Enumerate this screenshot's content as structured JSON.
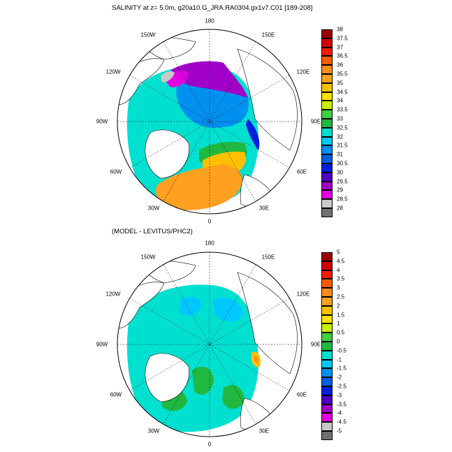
{
  "panels": {
    "top": {
      "title": "SALINITY at z=   5.0m, g20a10.G_JRA.RA0304.gx1v7.C01 [189-208]",
      "lon_labels": {
        "lon_180": "180",
        "lon_150w": "150W",
        "lon_150e": "150E",
        "lon_120w": "120W",
        "lon_120e": "120E",
        "lon_90w": "90W",
        "lon_90e": "90E",
        "lon_60w": "60W",
        "lon_60e": "60E",
        "lon_30w": "30W",
        "lon_30e": "30E",
        "lon_0": "0"
      },
      "colorbar": {
        "labels": [
          "38",
          "37.5",
          "37",
          "36.5",
          "36",
          "35.5",
          "35",
          "34.5",
          "34",
          "33.5",
          "33",
          "32.5",
          "32",
          "31.5",
          "31",
          "30.5",
          "30",
          "29.5",
          "29",
          "28.5",
          "28"
        ],
        "colors": [
          "#9a0000",
          "#d40000",
          "#ff1a00",
          "#ff5a00",
          "#ff8c1a",
          "#ffa020",
          "#ffc000",
          "#ffe000",
          "#c8f000",
          "#40d040",
          "#20b840",
          "#00e0d0",
          "#00c8ff",
          "#0090f0",
          "#0060e0",
          "#0020e0",
          "#5000c0",
          "#a000c8",
          "#e000e0",
          "#c8c8c8",
          "#707070"
        ]
      }
    },
    "bottom": {
      "title": "(MODEL - LEVITUS/PHC2)",
      "lon_labels": {
        "lon_180": "180",
        "lon_150w": "150W",
        "lon_150e": "150E",
        "lon_120w": "120W",
        "lon_120e": "120E",
        "lon_90w": "90W",
        "lon_90e": "90E",
        "lon_60w": "60W",
        "lon_60e": "60E",
        "lon_30w": "30W",
        "lon_30e": "30E",
        "lon_0": "0"
      },
      "colorbar": {
        "labels": [
          "5",
          "4.5",
          "4",
          "3.5",
          "3",
          "2.5",
          "2",
          "1.5",
          "1",
          "0.5",
          "0",
          "-0.5",
          "-1",
          "-1.5",
          "-2",
          "-2.5",
          "-3",
          "-3.5",
          "-4",
          "-4.5",
          "-5"
        ],
        "colors": [
          "#9a0000",
          "#d40000",
          "#ff1a00",
          "#ff5a00",
          "#ff8c1a",
          "#ffa020",
          "#ffc000",
          "#ffe000",
          "#c8f000",
          "#40d040",
          "#20b840",
          "#00e0d0",
          "#00c8ff",
          "#0090f0",
          "#0060e0",
          "#0020e0",
          "#5000c0",
          "#a000c8",
          "#e000e0",
          "#c8c8c8",
          "#707070"
        ]
      }
    }
  }
}
